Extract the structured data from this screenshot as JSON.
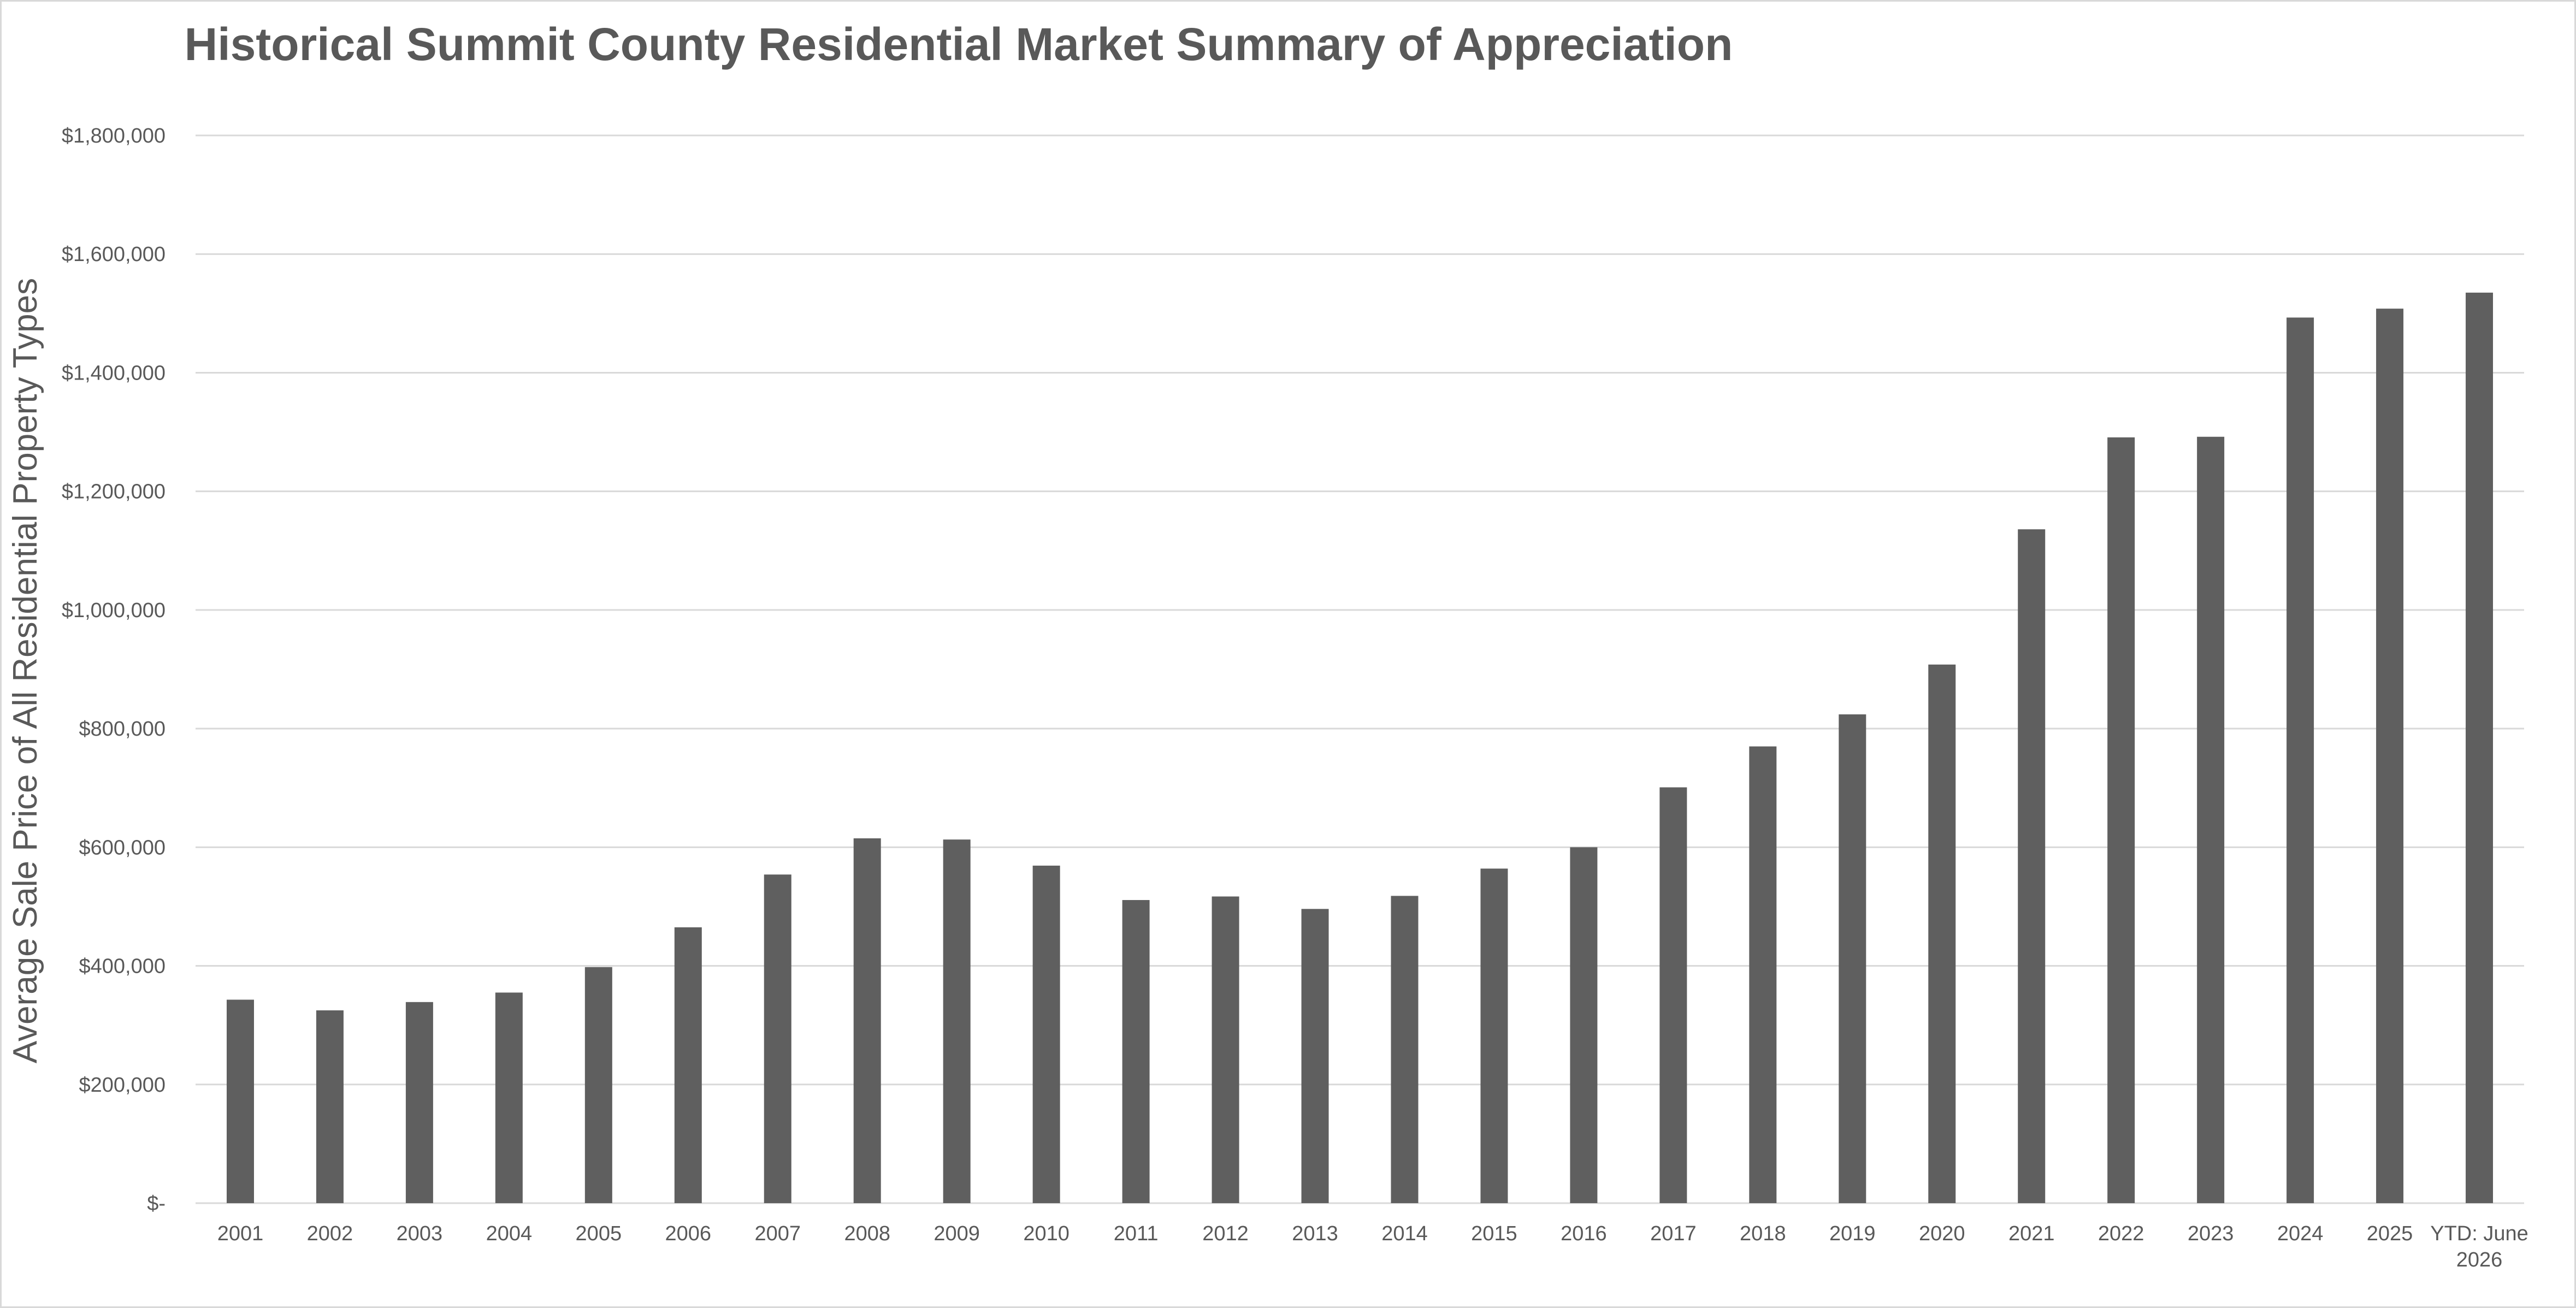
{
  "chart_data": {
    "type": "bar",
    "title": "Historical Summit County Residential Market Summary of Appreciation",
    "xlabel": "",
    "ylabel": "Average Sale Price of All Residential Property Types",
    "ylim": [
      0,
      1800000
    ],
    "yticks": [
      0,
      200000,
      400000,
      600000,
      800000,
      1000000,
      1200000,
      1400000,
      1600000,
      1800000
    ],
    "ytick_labels": [
      "$-",
      "$200,000",
      "$400,000",
      "$600,000",
      "$800,000",
      "$1,000,000",
      "$1,200,000",
      "$1,400,000",
      "$1,600,000",
      "$1,800,000"
    ],
    "grid": true,
    "legend": "none",
    "bar_color": "#5f5f5f",
    "categories": [
      "2001",
      "2002",
      "2003",
      "2004",
      "2005",
      "2006",
      "2007",
      "2008",
      "2009",
      "2010",
      "2011",
      "2012",
      "2013",
      "2014",
      "2015",
      "2016",
      "2017",
      "2018",
      "2019",
      "2020",
      "2021",
      "2022",
      "2023",
      "2024",
      "2025",
      "YTD: June 2026"
    ],
    "values": [
      343000,
      325000,
      339000,
      355000,
      398000,
      465000,
      554000,
      615000,
      613000,
      569000,
      511000,
      517000,
      496000,
      518000,
      564000,
      600000,
      701000,
      770000,
      824000,
      908000,
      1136000,
      1291000,
      1292000,
      1493000,
      1508000,
      1535000
    ]
  }
}
